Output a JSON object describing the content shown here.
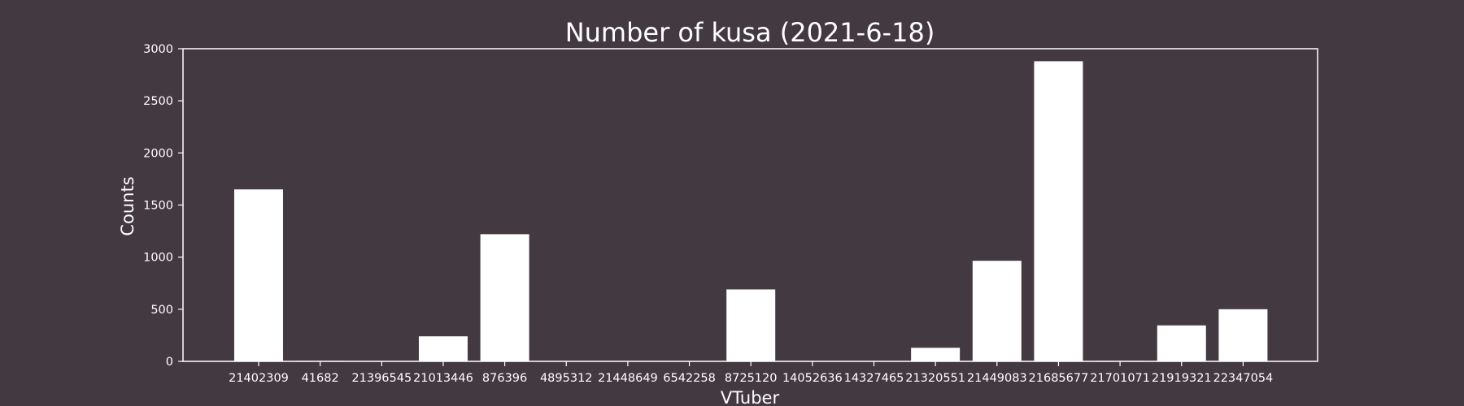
{
  "chart_data": {
    "type": "bar",
    "title": "Number of kusa (2021-6-18)",
    "xlabel": "VTuber",
    "ylabel": "Counts",
    "categories": [
      "21402309",
      "41682",
      "21396545",
      "21013446",
      "876396",
      "4895312",
      "21448649",
      "6542258",
      "8725120",
      "14052636",
      "14327465",
      "21320551",
      "21449083",
      "21685677",
      "21701071",
      "21919321",
      "22347054"
    ],
    "values": [
      1650,
      5,
      0,
      240,
      1220,
      0,
      0,
      0,
      690,
      0,
      0,
      130,
      965,
      2880,
      5,
      345,
      500
    ],
    "ylim": [
      0,
      3000
    ],
    "yticks": [
      0,
      500,
      1000,
      1500,
      2000,
      2500,
      3000
    ],
    "grid": false,
    "bar_color": "#ffffff",
    "background_color": "#433941",
    "axis_color": "#ffffff"
  }
}
